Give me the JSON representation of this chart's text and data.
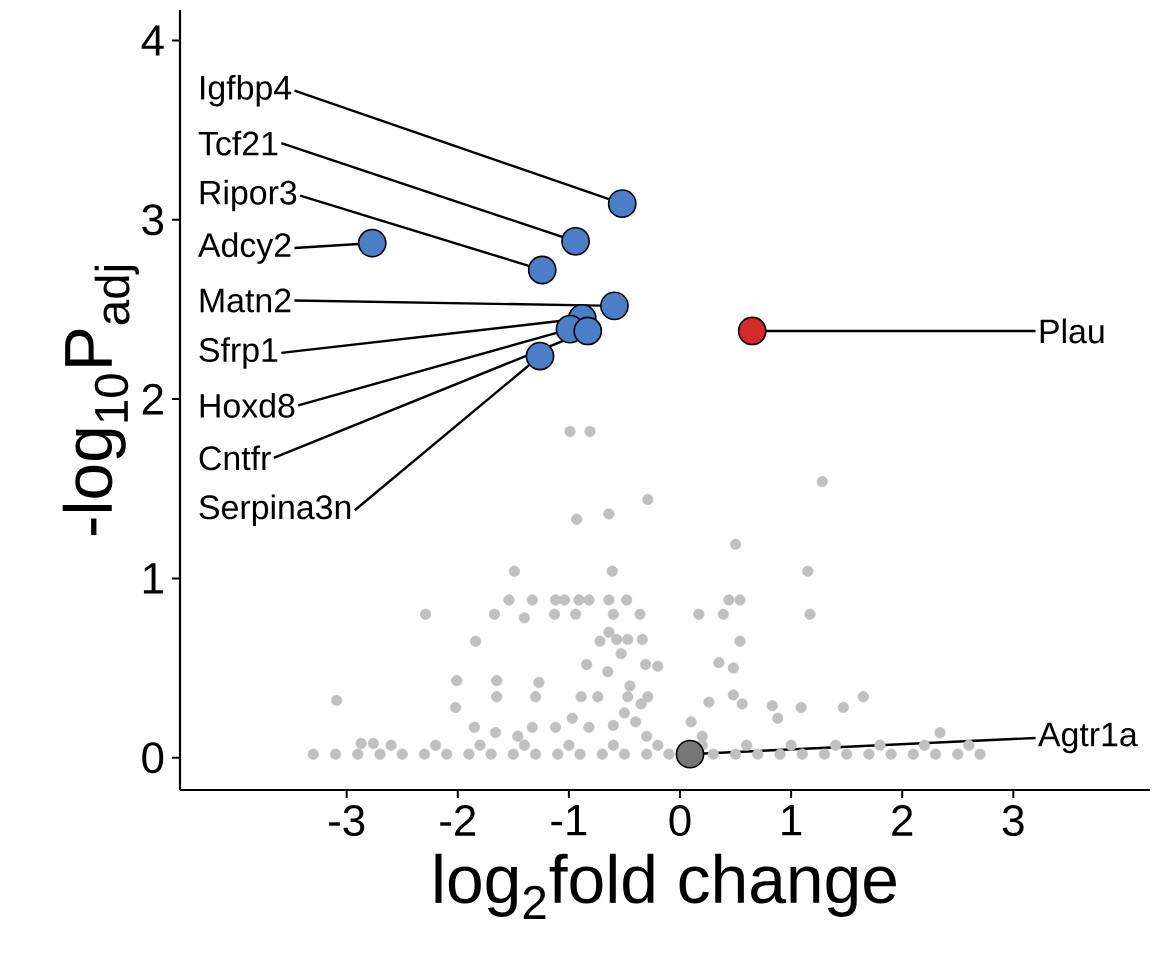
{
  "chart_data": {
    "type": "scatter",
    "xlabel": "log$_{2}$fold change",
    "ylabel": "-log$_{10}$P$_{adj}$",
    "xlim": [
      -4.5,
      4.23
    ],
    "ylim": [
      -0.18,
      4.17
    ],
    "xticks": [
      -3,
      -2,
      -1,
      0,
      1,
      2,
      3
    ],
    "yticks": [
      0,
      1,
      2,
      3,
      4
    ],
    "grid": false,
    "series": [
      {
        "color": "#c0c0c0",
        "x": [
          -0.99,
          -0.81,
          1.28,
          -0.29,
          -0.93,
          -0.64,
          0.5,
          -1.49,
          -0.61,
          1.15,
          -2.29,
          -1.67,
          -1.54,
          -1.33,
          -1.12,
          -1.04,
          -0.91,
          -0.82,
          -0.64,
          -0.48,
          -1.4,
          -1.13,
          -0.94,
          -0.6,
          -0.36,
          0.17,
          0.39,
          0.44,
          0.54,
          1.17,
          -1.84,
          -0.64,
          -0.57,
          -0.47,
          -0.34,
          -0.53,
          -0.72,
          0.54,
          -0.84,
          -0.65,
          -0.31,
          -0.2,
          0.35,
          0.48,
          -2.01,
          -1.65,
          -1.27,
          1.65,
          -3.09,
          -2.02,
          -1.65,
          -1.3,
          -0.89,
          -0.74,
          -0.47,
          -0.29,
          0.26,
          0.48,
          0.56,
          0.83,
          1.09,
          1.47,
          -1.85,
          -1.66,
          -1.46,
          -1.33,
          -1.12,
          -0.97,
          -0.82,
          -2.87,
          -2.76,
          0.88,
          2.34,
          -0.5,
          -0.4,
          -0.6,
          -0.3,
          -0.45,
          -0.35,
          0.1,
          0.2,
          -3.3,
          -3.1,
          -2.9,
          -2.7,
          -2.5,
          -2.3,
          -2.1,
          -1.9,
          -1.7,
          -1.5,
          -1.3,
          -1.1,
          -0.9,
          -0.7,
          -0.5,
          -0.3,
          -0.1,
          0.3,
          0.5,
          0.7,
          0.9,
          1.1,
          1.3,
          1.5,
          1.7,
          1.9,
          2.1,
          2.3,
          2.5,
          2.7,
          -2.6,
          -2.2,
          -1.8,
          -1.4,
          -1.0,
          -0.6,
          -0.2,
          0.2,
          0.6,
          1.0,
          1.4,
          1.8,
          2.2,
          2.6
        ],
        "values": [
          1.82,
          1.82,
          1.54,
          1.44,
          1.33,
          1.36,
          1.19,
          1.04,
          1.04,
          1.04,
          0.8,
          0.8,
          0.88,
          0.88,
          0.88,
          0.88,
          0.88,
          0.88,
          0.88,
          0.88,
          0.78,
          0.8,
          0.8,
          0.8,
          0.8,
          0.8,
          0.8,
          0.88,
          0.88,
          0.8,
          0.65,
          0.7,
          0.66,
          0.66,
          0.66,
          0.58,
          0.65,
          0.65,
          0.52,
          0.48,
          0.52,
          0.51,
          0.53,
          0.5,
          0.43,
          0.43,
          0.42,
          0.34,
          0.32,
          0.28,
          0.34,
          0.34,
          0.34,
          0.34,
          0.34,
          0.34,
          0.31,
          0.35,
          0.3,
          0.29,
          0.28,
          0.28,
          0.17,
          0.14,
          0.12,
          0.17,
          0.17,
          0.22,
          0.17,
          0.08,
          0.08,
          0.22,
          0.14,
          0.25,
          0.2,
          0.18,
          0.12,
          0.4,
          0.3,
          0.2,
          0.12,
          0.02,
          0.02,
          0.02,
          0.02,
          0.02,
          0.02,
          0.02,
          0.02,
          0.02,
          0.02,
          0.02,
          0.02,
          0.02,
          0.02,
          0.02,
          0.02,
          0.02,
          0.02,
          0.02,
          0.02,
          0.02,
          0.02,
          0.02,
          0.02,
          0.02,
          0.02,
          0.02,
          0.02,
          0.02,
          0.02,
          0.07,
          0.07,
          0.07,
          0.07,
          0.07,
          0.07,
          0.07,
          0.07,
          0.07,
          0.07,
          0.07,
          0.07,
          0.07,
          0.07
        ]
      },
      {
        "color": "#4a7fc8",
        "x": [
          -0.52,
          -0.94,
          -1.24,
          -2.77,
          -0.59,
          -0.88,
          -0.99,
          -0.83,
          -1.26
        ],
        "values": [
          3.09,
          2.88,
          2.72,
          2.87,
          2.52,
          2.45,
          2.39,
          2.38,
          2.24
        ]
      },
      {
        "color": "#d62a2a",
        "x": [
          0.65
        ],
        "values": [
          2.38
        ]
      },
      {
        "color": "#777777",
        "x": [
          0.09
        ],
        "values": [
          0.02
        ]
      }
    ],
    "annotations": [
      {
        "text": "Igfbp4",
        "x": -0.52,
        "y": 3.09
      },
      {
        "text": "Tcf21",
        "x": -0.94,
        "y": 2.88
      },
      {
        "text": "Ripor3",
        "x": -1.24,
        "y": 2.72
      },
      {
        "text": "Adcy2",
        "x": -2.77,
        "y": 2.87
      },
      {
        "text": "Matn2",
        "x": -0.59,
        "y": 2.52
      },
      {
        "text": "Sfrp1",
        "x": -0.88,
        "y": 2.45
      },
      {
        "text": "Hoxd8",
        "x": -0.99,
        "y": 2.39
      },
      {
        "text": "Cntfr",
        "x": -0.83,
        "y": 2.38
      },
      {
        "text": "Serpina3n",
        "x": -1.26,
        "y": 2.24
      },
      {
        "text": "Plau",
        "x": 0.65,
        "y": 2.38
      },
      {
        "text": "Agtr1a",
        "x": 0.09,
        "y": 0.02
      }
    ]
  }
}
